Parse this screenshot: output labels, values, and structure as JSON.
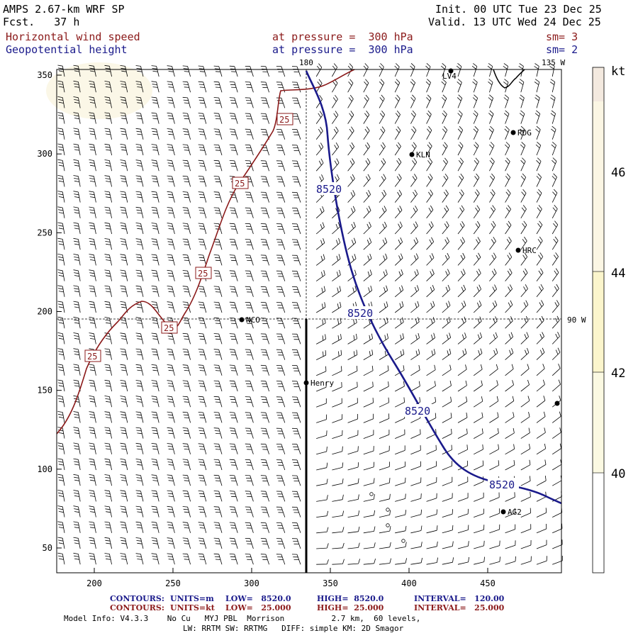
{
  "header": {
    "model": "AMPS 2.67-km WRF SP",
    "fcst": "Fcst.   37 h",
    "init": "Init. 00 UTC Tue 23 Dec 25",
    "valid": "Valid. 13 UTC Wed 24 Dec 25",
    "field1_name": "Horizontal wind speed",
    "field1_level": "at pressure =  300 hPa",
    "field1_sm": "sm= 3",
    "field2_name": "Geopotential height",
    "field2_level": "at pressure =  300 hPa",
    "field2_sm": "sm= 2"
  },
  "map": {
    "x_ticks": [
      "200",
      "250",
      "300",
      "350",
      "400",
      "450"
    ],
    "y_ticks": [
      "50",
      "100",
      "150",
      "200",
      "250",
      "300",
      "350"
    ],
    "meridian_labels": [
      "180",
      "135 W",
      "90 W"
    ],
    "stations": [
      "LV4",
      "RDG",
      "KLN",
      "HRC",
      "NCO",
      "Henry",
      "AG2"
    ],
    "height_contour_label": "8520",
    "wind_contour_label": "25"
  },
  "colorbar": {
    "unit": "kt",
    "labels": [
      "46",
      "44",
      "42",
      "40"
    ],
    "colors": [
      "#f3e9df",
      "#fbf6e4",
      "#fbf5cc",
      "#fbf9e2",
      "#ffffff"
    ]
  },
  "footer": {
    "c1_label": "CONTOURS:",
    "c1_units": "UNITS=m",
    "c1_low": "LOW=   8520.0",
    "c1_high": "HIGH=  8520.0",
    "c1_int": "INTERVAL=   120.00",
    "c2_label": "CONTOURS:",
    "c2_units": "UNITS=kt",
    "c2_low": "LOW=   25.000",
    "c2_high": "HIGH=  25.000",
    "c2_int": "INTERVAL=   25.000",
    "model_info": "Model Info: V4.3.3    No Cu   MYJ PBL  Morrison          2.7 km,  60 levels,",
    "model_info2": "LW: RRTM SW: RRTMG   DIFF: simple KM: 2D Smagor"
  },
  "colors": {
    "height_contour": "#1a1a8b",
    "wind_contour": "#8b1a1a",
    "barb": "#000000"
  }
}
